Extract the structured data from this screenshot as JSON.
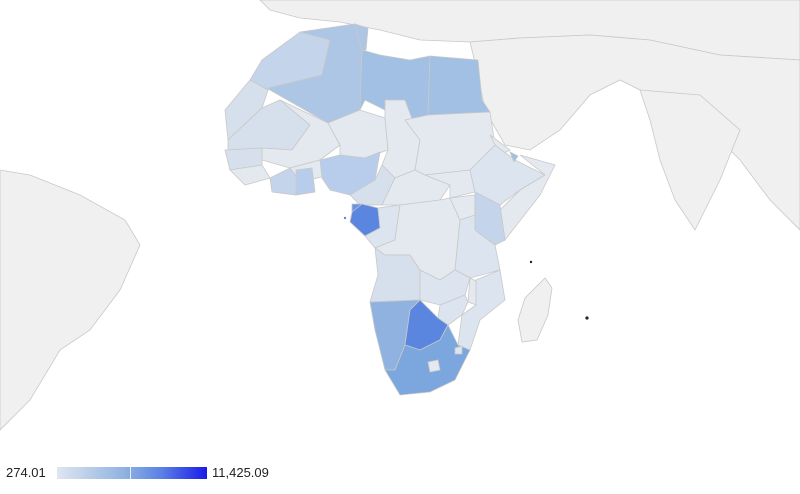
{
  "legend": {
    "min_label": "274.01",
    "max_label": "11,425.09",
    "min_value": 274.01,
    "max_value": 11425.09,
    "colors": [
      "#dfe6f1",
      "#8fb2e0",
      "#5b7fe6",
      "#1a1ae8"
    ]
  },
  "map": {
    "background_color": "#ffffff",
    "no_data_color": "#f0f0f0",
    "border_color": "#c8c8c8",
    "region": "Africa"
  }
}
